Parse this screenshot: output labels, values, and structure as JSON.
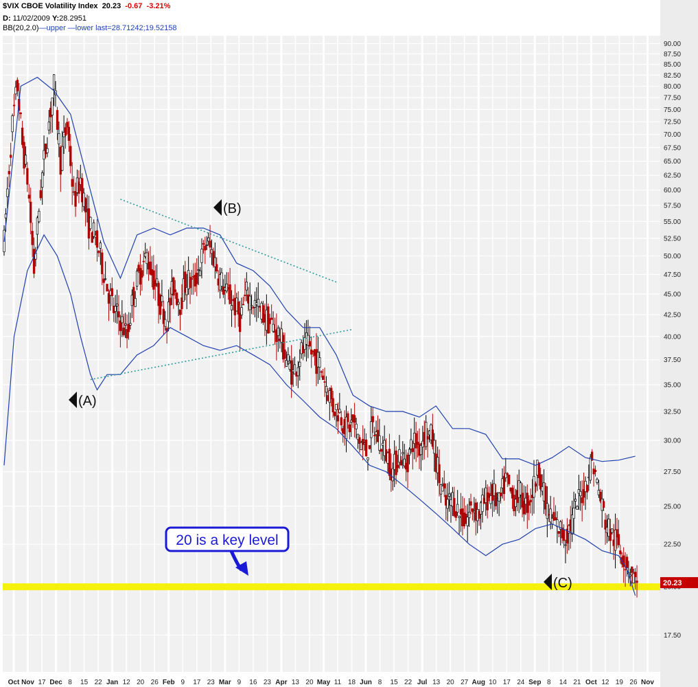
{
  "header": {
    "symbol": "$VIX CBOE Volatility Index",
    "last": "20.23",
    "change": "-0.67",
    "change_pct": "-3.21%",
    "date_label": "D:",
    "date_value": "11/02/2009",
    "y_label": "Y:",
    "y_value": "28.2951",
    "bb_label": "BB(20,2.0)",
    "bb_upper": "upper",
    "bb_lower": "lower",
    "bb_last": "last=28.71242;19.52158"
  },
  "colors": {
    "up_candle": "#000000",
    "down_candle": "#b00000",
    "bollinger": "#1f3fae",
    "trendline": "#2a9a9a",
    "highlight": "#f4f000",
    "price_tag": "#c40000",
    "callout": "#1a1ad6"
  },
  "annotations": {
    "marker_a": "(A)",
    "marker_b": "(B)",
    "marker_c": "(C)",
    "callout_text": "20 is a key level"
  },
  "chart_data": {
    "type": "candlestick",
    "title": "$VIX CBOE Volatility Index",
    "y_scale": "log",
    "ylim": [
      15.8,
      92
    ],
    "y_ticks": [
      90,
      87.5,
      85,
      82.5,
      80,
      77.5,
      75,
      72.5,
      70,
      67.5,
      65,
      62.5,
      60,
      57.5,
      55,
      52.5,
      50,
      47.5,
      45,
      42.5,
      40,
      37.5,
      35,
      32.5,
      30,
      27.5,
      25,
      22.5,
      20,
      17.5
    ],
    "y_tick_labels": [
      "90.00",
      "87.50",
      "85.00",
      "82.50",
      "80.00",
      "77.50",
      "75.00",
      "72.50",
      "70.00",
      "67.50",
      "65.00",
      "62.50",
      "60.00",
      "57.50",
      "55.00",
      "52.50",
      "50.00",
      "47.50",
      "45.00",
      "42.50",
      "40.00",
      "37.50",
      "35.00",
      "32.50",
      "30.00",
      "27.50",
      "25.00",
      "22.50",
      "20.00",
      "17.50"
    ],
    "x_labels": [
      "Oct",
      "Nov",
      "17",
      "Dec",
      "8",
      "15",
      "22",
      "Jan",
      "12",
      "20",
      "26",
      "Feb",
      "9",
      "17",
      "23",
      "Mar",
      "9",
      "16",
      "23",
      "Apr",
      "13",
      "20",
      "May",
      "11",
      "18",
      "Jun",
      "8",
      "15",
      "22",
      "Jul",
      "13",
      "20",
      "27",
      "Aug",
      "10",
      "17",
      "24",
      "Sep",
      "8",
      "14",
      "21",
      "Oct",
      "12",
      "19",
      "26",
      "Nov"
    ],
    "bold_x_labels": [
      "Oct",
      "Nov",
      "Dec",
      "Jan",
      "Feb",
      "Mar",
      "Apr",
      "May",
      "Jun",
      "Jul",
      "Aug",
      "Sep",
      "Oct",
      "Nov"
    ],
    "last_value": 20.23,
    "highlight_level": 20,
    "trend": [
      [
        0,
        52
      ],
      [
        2,
        60
      ],
      [
        5,
        72
      ],
      [
        8,
        80
      ],
      [
        11,
        68
      ],
      [
        14,
        62
      ],
      [
        18,
        48
      ],
      [
        22,
        60
      ],
      [
        26,
        70
      ],
      [
        30,
        80
      ],
      [
        34,
        65
      ],
      [
        38,
        72
      ],
      [
        42,
        58
      ],
      [
        46,
        62
      ],
      [
        50,
        55
      ],
      [
        54,
        53
      ],
      [
        58,
        50
      ],
      [
        62,
        46
      ],
      [
        66,
        43
      ],
      [
        70,
        42
      ],
      [
        74,
        40
      ],
      [
        78,
        45
      ],
      [
        82,
        48
      ],
      [
        86,
        50
      ],
      [
        90,
        47
      ],
      [
        94,
        44
      ],
      [
        98,
        42
      ],
      [
        102,
        46
      ],
      [
        106,
        44
      ],
      [
        110,
        47
      ],
      [
        114,
        46
      ],
      [
        118,
        49
      ],
      [
        122,
        52
      ],
      [
        126,
        50
      ],
      [
        130,
        47
      ],
      [
        134,
        45
      ],
      [
        138,
        44
      ],
      [
        142,
        42
      ],
      [
        146,
        45
      ],
      [
        150,
        44
      ],
      [
        154,
        43
      ],
      [
        158,
        42
      ],
      [
        162,
        41
      ],
      [
        166,
        40
      ],
      [
        170,
        37.5
      ],
      [
        174,
        36
      ],
      [
        178,
        38
      ],
      [
        182,
        39
      ],
      [
        186,
        38
      ],
      [
        190,
        37
      ],
      [
        194,
        35
      ],
      [
        198,
        33
      ],
      [
        202,
        32.5
      ],
      [
        206,
        31
      ],
      [
        210,
        31.5
      ],
      [
        214,
        30
      ],
      [
        218,
        29
      ],
      [
        222,
        31
      ],
      [
        226,
        30
      ],
      [
        230,
        29
      ],
      [
        234,
        27.5
      ],
      [
        238,
        29
      ],
      [
        242,
        28
      ],
      [
        246,
        30
      ],
      [
        250,
        29.5
      ],
      [
        254,
        31
      ],
      [
        258,
        30
      ],
      [
        262,
        27
      ],
      [
        266,
        25
      ],
      [
        270,
        25.5
      ],
      [
        274,
        24.5
      ],
      [
        278,
        24
      ],
      [
        282,
        25
      ],
      [
        286,
        24.5
      ],
      [
        290,
        25.5
      ],
      [
        294,
        26
      ],
      [
        298,
        25
      ],
      [
        302,
        27
      ],
      [
        306,
        25.5
      ],
      [
        310,
        26
      ],
      [
        314,
        25
      ],
      [
        318,
        26
      ],
      [
        322,
        28
      ],
      [
        326,
        25
      ],
      [
        330,
        24
      ],
      [
        334,
        23.5
      ],
      [
        338,
        23
      ],
      [
        342,
        24
      ],
      [
        346,
        25.5
      ],
      [
        350,
        26.5
      ],
      [
        354,
        28.5
      ],
      [
        358,
        26
      ],
      [
        362,
        24
      ],
      [
        366,
        23
      ],
      [
        370,
        22.5
      ],
      [
        374,
        21.5
      ],
      [
        378,
        20.9
      ],
      [
        380,
        20.23
      ]
    ],
    "bb_upper_pts": [
      [
        0,
        52
      ],
      [
        10,
        80
      ],
      [
        20,
        82
      ],
      [
        30,
        79
      ],
      [
        40,
        74
      ],
      [
        50,
        62
      ],
      [
        60,
        52
      ],
      [
        70,
        47
      ],
      [
        80,
        53
      ],
      [
        90,
        54
      ],
      [
        100,
        53
      ],
      [
        110,
        54
      ],
      [
        120,
        54
      ],
      [
        130,
        53
      ],
      [
        140,
        49
      ],
      [
        150,
        48
      ],
      [
        160,
        46
      ],
      [
        170,
        43
      ],
      [
        180,
        41
      ],
      [
        190,
        41
      ],
      [
        200,
        38
      ],
      [
        210,
        34
      ],
      [
        220,
        33
      ],
      [
        230,
        32.5
      ],
      [
        240,
        32.5
      ],
      [
        250,
        32
      ],
      [
        260,
        33
      ],
      [
        270,
        31
      ],
      [
        280,
        31
      ],
      [
        290,
        30.5
      ],
      [
        300,
        28.5
      ],
      [
        310,
        28.5
      ],
      [
        320,
        28
      ],
      [
        330,
        28.6
      ],
      [
        340,
        29.5
      ],
      [
        350,
        28.6
      ],
      [
        360,
        28.3
      ],
      [
        370,
        28.4
      ],
      [
        380,
        28.71
      ]
    ],
    "bb_lower_pts": [
      [
        0,
        28
      ],
      [
        6,
        40
      ],
      [
        14,
        48
      ],
      [
        24,
        53
      ],
      [
        32,
        50
      ],
      [
        40,
        45
      ],
      [
        46,
        40
      ],
      [
        52,
        36
      ],
      [
        56,
        34.5
      ],
      [
        62,
        36
      ],
      [
        70,
        36
      ],
      [
        80,
        38
      ],
      [
        90,
        39
      ],
      [
        100,
        41
      ],
      [
        110,
        40
      ],
      [
        120,
        39
      ],
      [
        130,
        38.5
      ],
      [
        140,
        39
      ],
      [
        150,
        38
      ],
      [
        160,
        37
      ],
      [
        170,
        35
      ],
      [
        180,
        33.5
      ],
      [
        190,
        32
      ],
      [
        200,
        31
      ],
      [
        210,
        29.5
      ],
      [
        220,
        28
      ],
      [
        230,
        27.5
      ],
      [
        240,
        26.5
      ],
      [
        250,
        25.5
      ],
      [
        260,
        24.5
      ],
      [
        270,
        23.5
      ],
      [
        280,
        22.5
      ],
      [
        290,
        21.8
      ],
      [
        300,
        22.5
      ],
      [
        310,
        22.8
      ],
      [
        320,
        23.5
      ],
      [
        330,
        23.8
      ],
      [
        340,
        23.3
      ],
      [
        350,
        22.8
      ],
      [
        360,
        22.1
      ],
      [
        370,
        21.8
      ],
      [
        375,
        21.0
      ],
      [
        380,
        19.52
      ]
    ],
    "trendlines": [
      {
        "from": [
          70,
          58.5
        ],
        "to": [
          200,
          46.5
        ]
      },
      {
        "from": [
          52,
          35.5
        ],
        "to": [
          210,
          40.8
        ]
      }
    ]
  }
}
